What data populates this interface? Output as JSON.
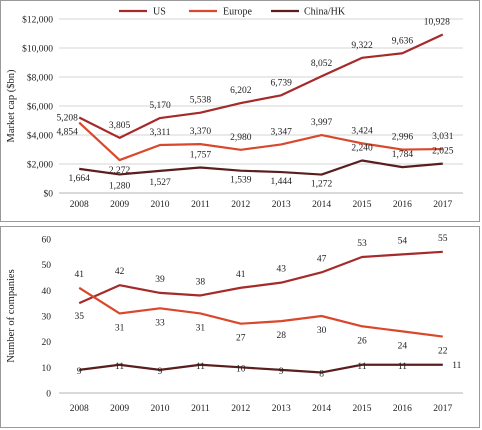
{
  "colors": {
    "us": "#a52a2a",
    "europe": "#d9482b",
    "china": "#5a1e1e"
  },
  "chart_data": [
    {
      "type": "line",
      "title": "",
      "xlabel": "",
      "ylabel": "Market cap ($bn)",
      "x": [
        "2008",
        "2009",
        "2010",
        "2011",
        "2012",
        "2013",
        "2014",
        "2015",
        "2016",
        "2017"
      ],
      "ylim": [
        0,
        12000
      ],
      "yticks": [
        0,
        2000,
        4000,
        6000,
        8000,
        10000,
        12000
      ],
      "ytick_labels": [
        "$0",
        "$2,000",
        "$4,000",
        "$6,000",
        "$8,000",
        "$10,000",
        "$12,000"
      ],
      "grid": true,
      "legend": "top",
      "series": [
        {
          "name": "US",
          "key": "us",
          "values": [
            5208,
            3805,
            5170,
            5538,
            6202,
            6739,
            8052,
            9322,
            9636,
            10928
          ],
          "labels": [
            "5,208",
            "3,805",
            "5,170",
            "5,538",
            "6,202",
            "6,739",
            "8,052",
            "9,322",
            "9,636",
            "10,928"
          ]
        },
        {
          "name": "Europe",
          "key": "europe",
          "values": [
            4854,
            2272,
            3311,
            3370,
            2980,
            3347,
            3997,
            3424,
            2996,
            3031
          ],
          "labels": [
            "4,854",
            "2,272",
            "3,311",
            "3,370",
            "2,980",
            "3,347",
            "3,997",
            "3,424",
            "2,996",
            "3,031"
          ]
        },
        {
          "name": "China/HK",
          "key": "china",
          "values": [
            1664,
            1280,
            1527,
            1757,
            1539,
            1444,
            1272,
            2240,
            1784,
            2025
          ],
          "labels": [
            "1,664",
            "1,280",
            "1,527",
            "1,757",
            "1,539",
            "1,444",
            "1,272",
            "2,240",
            "1,784",
            "2,025"
          ]
        }
      ]
    },
    {
      "type": "line",
      "title": "",
      "xlabel": "",
      "ylabel": "Number of companies",
      "x": [
        "2008",
        "2009",
        "2010",
        "2011",
        "2012",
        "2013",
        "2014",
        "2015",
        "2016",
        "2017"
      ],
      "ylim": [
        0,
        60
      ],
      "yticks": [
        0,
        10,
        20,
        30,
        40,
        50,
        60
      ],
      "ytick_labels": [
        "0",
        "10",
        "20",
        "30",
        "40",
        "50",
        "60"
      ],
      "grid": false,
      "series": [
        {
          "name": "US",
          "key": "us",
          "values": [
            35,
            42,
            39,
            38,
            41,
            43,
            47,
            53,
            54,
            55
          ],
          "labels": [
            "35",
            "42",
            "39",
            "38",
            "41",
            "43",
            "47",
            "53",
            "54",
            "55"
          ]
        },
        {
          "name": "Europe",
          "key": "europe",
          "values": [
            41,
            31,
            33,
            31,
            27,
            28,
            30,
            26,
            24,
            22
          ],
          "labels": [
            "41",
            "31",
            "33",
            "31",
            "27",
            "28",
            "30",
            "26",
            "24",
            "22"
          ]
        },
        {
          "name": "China/HK",
          "key": "china",
          "values": [
            9,
            11,
            9,
            11,
            10,
            9,
            8,
            11,
            11,
            11
          ],
          "labels": [
            "9",
            "11",
            "9",
            "11",
            "10",
            "9",
            "8",
            "11",
            "11",
            "11"
          ]
        }
      ]
    }
  ]
}
